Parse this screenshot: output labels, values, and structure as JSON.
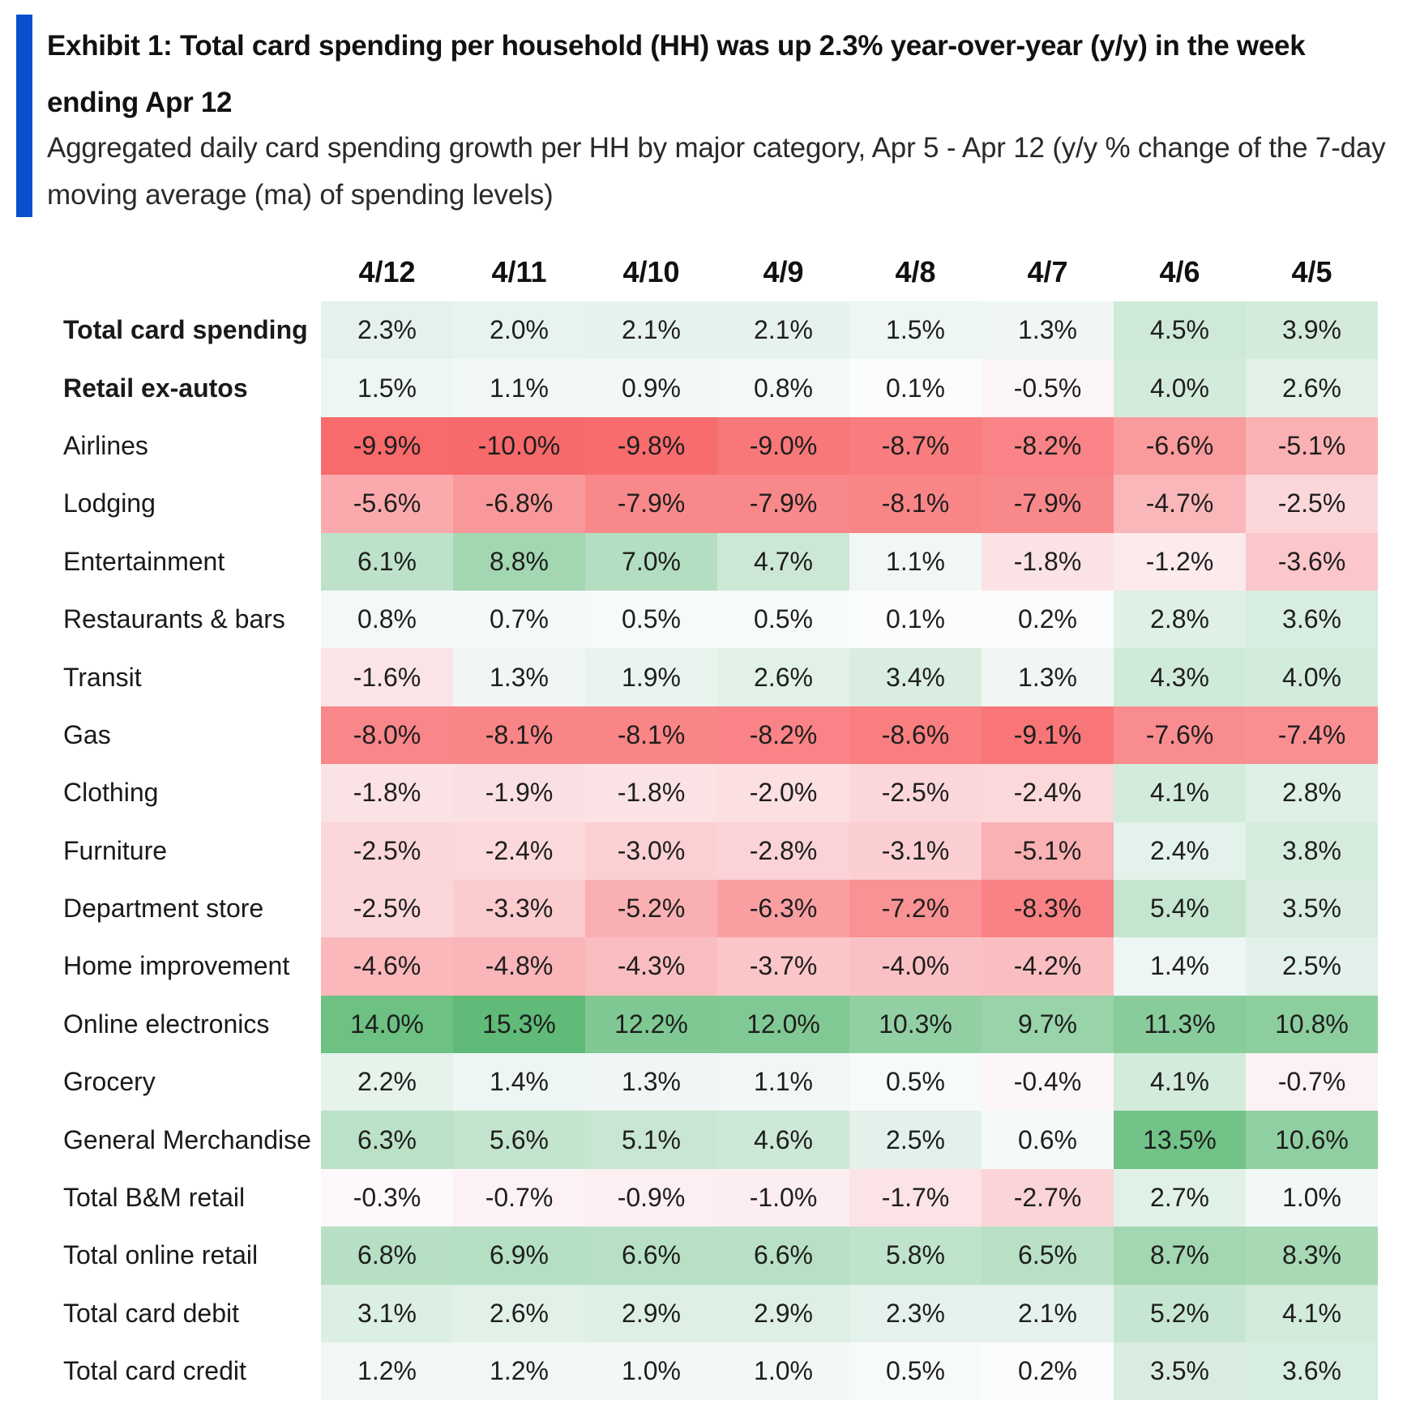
{
  "title": "Exhibit 1: Total card spending per household (HH) was up 2.3% year-over-year (y/y) in the week ending Apr 12",
  "subtitle": "Aggregated daily card spending growth per HH by major category, Apr 5 - Apr 12 (y/y % change of the 7-day moving average (ma) of spending levels)",
  "colors": {
    "accent": "#0a4fd0",
    "positive_max": "#5fbb77",
    "negative_max": "#f8696b",
    "neutral": "#fcfcff"
  },
  "chart_data": {
    "type": "heatmap",
    "columns": [
      "4/12",
      "4/11",
      "4/10",
      "4/9",
      "4/8",
      "4/7",
      "4/6",
      "4/5"
    ],
    "rows": [
      {
        "label": "Total card spending",
        "bold": true,
        "values": [
          2.3,
          2.0,
          2.1,
          2.1,
          1.5,
          1.3,
          4.5,
          3.9
        ]
      },
      {
        "label": "Retail ex-autos",
        "bold": true,
        "values": [
          1.5,
          1.1,
          0.9,
          0.8,
          0.1,
          -0.5,
          4.0,
          2.6
        ]
      },
      {
        "label": "Airlines",
        "bold": false,
        "values": [
          -9.9,
          -10.0,
          -9.8,
          -9.0,
          -8.7,
          -8.2,
          -6.6,
          -5.1
        ]
      },
      {
        "label": "Lodging",
        "bold": false,
        "values": [
          -5.6,
          -6.8,
          -7.9,
          -7.9,
          -8.1,
          -7.9,
          -4.7,
          -2.5
        ]
      },
      {
        "label": "Entertainment",
        "bold": false,
        "values": [
          6.1,
          8.8,
          7.0,
          4.7,
          1.1,
          -1.8,
          -1.2,
          -3.6
        ]
      },
      {
        "label": "Restaurants & bars",
        "bold": false,
        "values": [
          0.8,
          0.7,
          0.5,
          0.5,
          0.1,
          0.2,
          2.8,
          3.6
        ]
      },
      {
        "label": "Transit",
        "bold": false,
        "values": [
          -1.6,
          1.3,
          1.9,
          2.6,
          3.4,
          1.3,
          4.3,
          4.0
        ]
      },
      {
        "label": "Gas",
        "bold": false,
        "values": [
          -8.0,
          -8.1,
          -8.1,
          -8.2,
          -8.6,
          -9.1,
          -7.6,
          -7.4
        ]
      },
      {
        "label": "Clothing",
        "bold": false,
        "values": [
          -1.8,
          -1.9,
          -1.8,
          -2.0,
          -2.5,
          -2.4,
          4.1,
          2.8
        ]
      },
      {
        "label": "Furniture",
        "bold": false,
        "values": [
          -2.5,
          -2.4,
          -3.0,
          -2.8,
          -3.1,
          -5.1,
          2.4,
          3.8
        ]
      },
      {
        "label": "Department store",
        "bold": false,
        "values": [
          -2.5,
          -3.3,
          -5.2,
          -6.3,
          -7.2,
          -8.3,
          5.4,
          3.5
        ]
      },
      {
        "label": "Home improvement",
        "bold": false,
        "values": [
          -4.6,
          -4.8,
          -4.3,
          -3.7,
          -4.0,
          -4.2,
          1.4,
          2.5
        ]
      },
      {
        "label": "Online electronics",
        "bold": false,
        "values": [
          14.0,
          15.3,
          12.2,
          12.0,
          10.3,
          9.7,
          11.3,
          10.8
        ]
      },
      {
        "label": "Grocery",
        "bold": false,
        "values": [
          2.2,
          1.4,
          1.3,
          1.1,
          0.5,
          -0.4,
          4.1,
          -0.7
        ]
      },
      {
        "label": "General Merchandise",
        "bold": false,
        "values": [
          6.3,
          5.6,
          5.1,
          4.6,
          2.5,
          0.6,
          13.5,
          10.6
        ]
      },
      {
        "label": "Total B&M retail",
        "bold": false,
        "values": [
          -0.3,
          -0.7,
          -0.9,
          -1.0,
          -1.7,
          -2.7,
          2.7,
          1.0
        ]
      },
      {
        "label": "Total online retail",
        "bold": false,
        "values": [
          6.8,
          6.9,
          6.6,
          6.6,
          5.8,
          6.5,
          8.7,
          8.3
        ]
      },
      {
        "label": "Total card debit",
        "bold": false,
        "values": [
          3.1,
          2.6,
          2.9,
          2.9,
          2.3,
          2.1,
          5.2,
          4.1
        ]
      },
      {
        "label": "Total card credit",
        "bold": false,
        "values": [
          1.2,
          1.2,
          1.0,
          1.0,
          0.5,
          0.2,
          3.5,
          3.6
        ]
      }
    ]
  }
}
